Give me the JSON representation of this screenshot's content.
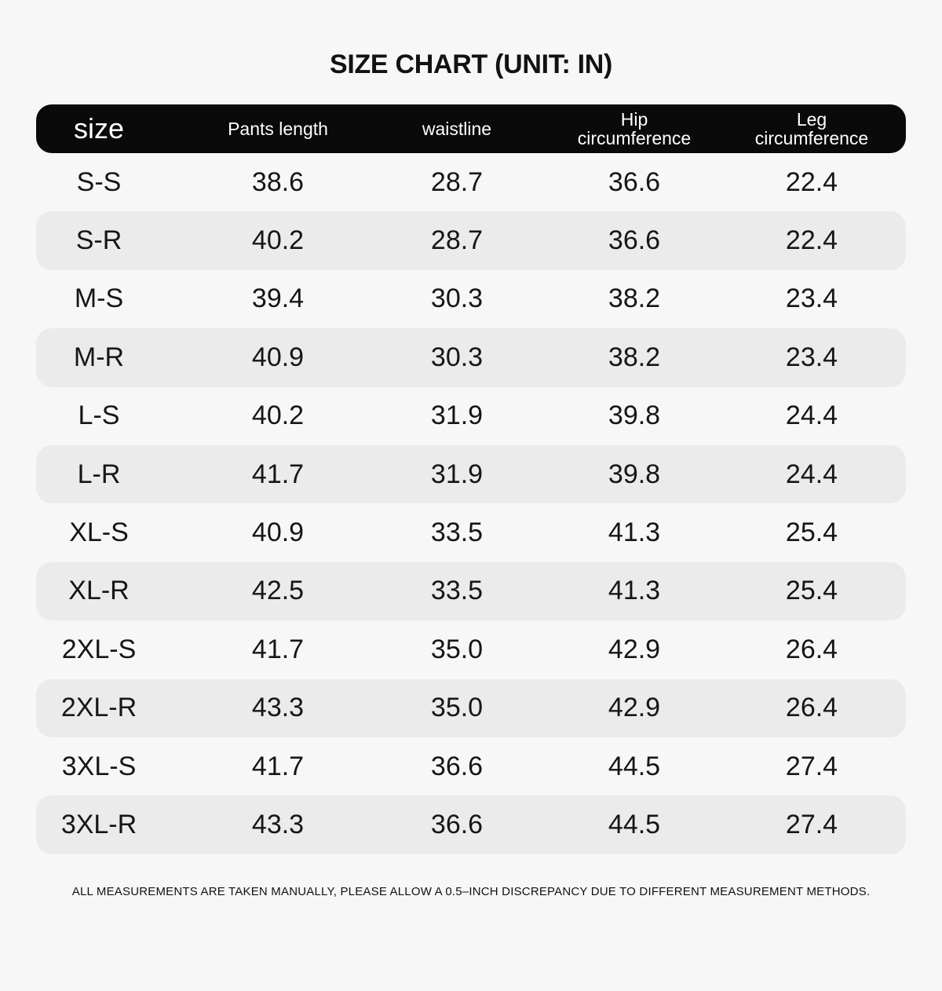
{
  "title": "SIZE CHART (UNIT: IN)",
  "chart_data": {
    "type": "table",
    "title": "SIZE CHART (UNIT: IN)",
    "unit": "IN",
    "columns": [
      {
        "label": "size",
        "lines": [
          "size"
        ]
      },
      {
        "label": "Pants length",
        "lines": [
          "Pants length"
        ]
      },
      {
        "label": "waistline",
        "lines": [
          "waistline"
        ]
      },
      {
        "label": "Hip circumference",
        "lines": [
          "Hip",
          "circumference"
        ]
      },
      {
        "label": "Leg circumference",
        "lines": [
          "Leg",
          "circumference"
        ]
      }
    ],
    "rows": [
      {
        "size": "S-S",
        "values": [
          "38.6",
          "28.7",
          "36.6",
          "22.4"
        ]
      },
      {
        "size": "S-R",
        "values": [
          "40.2",
          "28.7",
          "36.6",
          "22.4"
        ]
      },
      {
        "size": "M-S",
        "values": [
          "39.4",
          "30.3",
          "38.2",
          "23.4"
        ]
      },
      {
        "size": "M-R",
        "values": [
          "40.9",
          "30.3",
          "38.2",
          "23.4"
        ]
      },
      {
        "size": "L-S",
        "values": [
          "40.2",
          "31.9",
          "39.8",
          "24.4"
        ]
      },
      {
        "size": "L-R",
        "values": [
          "41.7",
          "31.9",
          "39.8",
          "24.4"
        ]
      },
      {
        "size": "XL-S",
        "values": [
          "40.9",
          "33.5",
          "41.3",
          "25.4"
        ]
      },
      {
        "size": "XL-R",
        "values": [
          "42.5",
          "33.5",
          "41.3",
          "25.4"
        ]
      },
      {
        "size": "2XL-S",
        "values": [
          "41.7",
          "35.0",
          "42.9",
          "26.4"
        ]
      },
      {
        "size": "2XL-R",
        "values": [
          "43.3",
          "35.0",
          "42.9",
          "26.4"
        ]
      },
      {
        "size": "3XL-S",
        "values": [
          "41.7",
          "36.6",
          "44.5",
          "27.4"
        ]
      },
      {
        "size": "3XL-R",
        "values": [
          "43.3",
          "36.6",
          "44.5",
          "27.4"
        ]
      }
    ]
  },
  "footer": {
    "note": "ALL MEASUREMENTS ARE TAKEN MANUALLY, PLEASE ALLOW A 0.5–INCH DISCREPANCY DUE TO DIFFERENT MEASUREMENT METHODS."
  },
  "colors": {
    "page_bg": "#f7f7f7",
    "header_bg": "#0a0a0a",
    "header_text": "#ffffff",
    "row_alt_bg": "#ebebeb",
    "text": "#161616"
  }
}
